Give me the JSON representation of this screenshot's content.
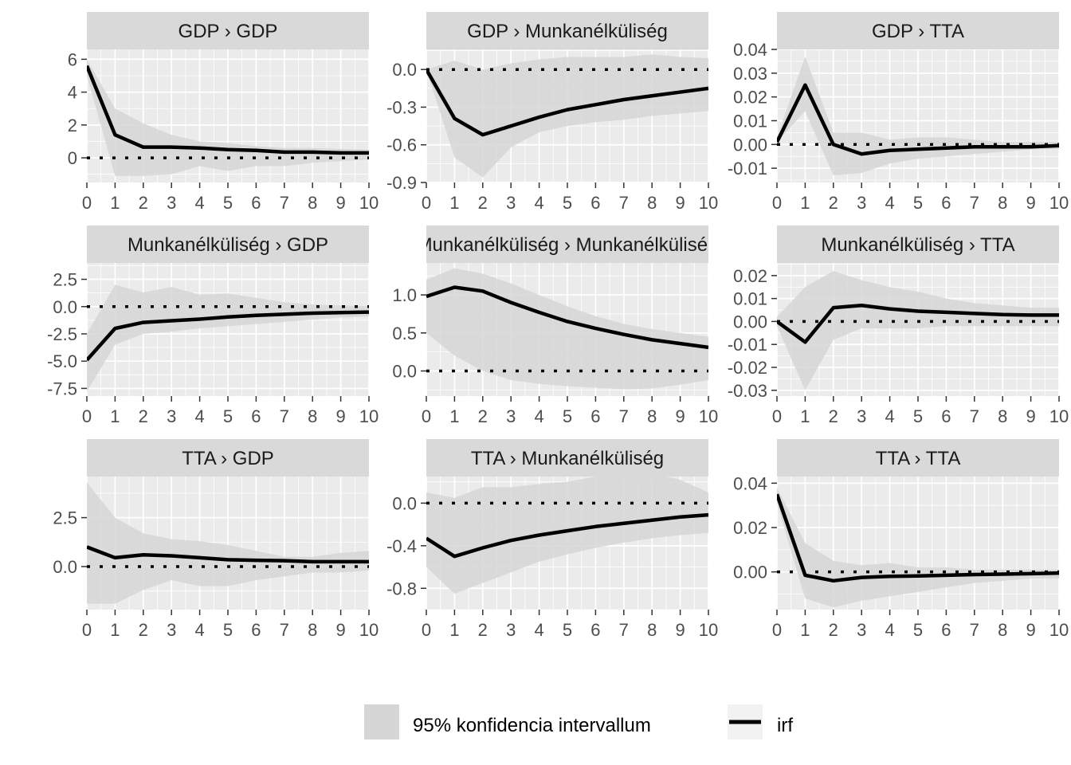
{
  "colors": {
    "panel_background": "#ebebeb",
    "grid_major": "#ffffff",
    "strip_background": "#d9d9d9",
    "ribbon_fill": "#d6d6d6",
    "irf_line": "#000000",
    "zero_line": "#000000"
  },
  "legend": {
    "ribbon_label": "95% konfidencia intervallum",
    "line_label": "irf",
    "position": "bottom"
  },
  "chart_data": [
    {
      "type": "line",
      "title": "GDP › GDP",
      "x": [
        0,
        1,
        2,
        3,
        4,
        5,
        6,
        7,
        8,
        9,
        10
      ],
      "xlim": [
        0,
        10
      ],
      "ylim": [
        -1.5,
        6.6
      ],
      "yticks": [
        0,
        2,
        4,
        6
      ],
      "ytick_labels": [
        "0",
        "2",
        "4",
        "6"
      ],
      "series": [
        {
          "name": "irf",
          "values": [
            5.6,
            1.4,
            0.65,
            0.65,
            0.6,
            0.5,
            0.45,
            0.35,
            0.35,
            0.3,
            0.3
          ]
        },
        {
          "name": "95% konfidencia intervallum",
          "lower": [
            5.0,
            -1.1,
            -1.1,
            -1.0,
            -0.5,
            -0.8,
            -0.5,
            -0.5,
            -0.3,
            -0.2,
            -0.1
          ],
          "upper": [
            6.0,
            3.0,
            2.1,
            1.4,
            1.0,
            0.9,
            0.7,
            0.6,
            0.6,
            0.55,
            0.5
          ]
        }
      ],
      "reference_line": 0
    },
    {
      "type": "line",
      "title": "GDP › Munkanélküliség",
      "x": [
        0,
        1,
        2,
        3,
        4,
        5,
        6,
        7,
        8,
        9,
        10
      ],
      "xlim": [
        0,
        10
      ],
      "ylim": [
        -0.9,
        0.16
      ],
      "yticks": [
        0,
        -0.3,
        -0.6,
        -0.9
      ],
      "ytick_labels": [
        "0.0",
        "-0.3",
        "-0.6",
        "-0.9"
      ],
      "series": [
        {
          "name": "irf",
          "values": [
            0,
            -0.39,
            -0.52,
            -0.45,
            -0.38,
            -0.32,
            -0.28,
            -0.24,
            -0.21,
            -0.18,
            -0.15
          ]
        },
        {
          "name": "95% konfidencia intervallum",
          "lower": [
            0,
            -0.7,
            -0.86,
            -0.62,
            -0.5,
            -0.45,
            -0.42,
            -0.4,
            -0.37,
            -0.35,
            -0.33
          ],
          "upper": [
            0,
            0.07,
            0.0,
            0.05,
            0.08,
            0.1,
            0.1,
            0.1,
            0.12,
            0.1,
            0.09
          ]
        }
      ],
      "reference_line": 0
    },
    {
      "type": "line",
      "title": "GDP › TTA",
      "x": [
        0,
        1,
        2,
        3,
        4,
        5,
        6,
        7,
        8,
        9,
        10
      ],
      "xlim": [
        0,
        10
      ],
      "ylim": [
        -0.016,
        0.04
      ],
      "yticks": [
        -0.01,
        0,
        0.01,
        0.02,
        0.03,
        0.04
      ],
      "ytick_labels": [
        "-0.01",
        "0.00",
        "0.01",
        "0.02",
        "0.03",
        "0.04"
      ],
      "series": [
        {
          "name": "irf",
          "values": [
            0.001,
            0.025,
            0.0,
            -0.004,
            -0.0025,
            -0.002,
            -0.0015,
            -0.001,
            -0.001,
            -0.001,
            -0.0005
          ]
        },
        {
          "name": "95% konfidencia intervallum",
          "lower": [
            0.001,
            0.014,
            -0.013,
            -0.012,
            -0.008,
            -0.006,
            -0.005,
            -0.004,
            -0.003,
            -0.002,
            -0.002
          ],
          "upper": [
            0.003,
            0.037,
            0.005,
            0.005,
            0.002,
            0.003,
            0.003,
            0.002,
            0.001,
            0.001,
            0.001
          ]
        }
      ],
      "reference_line": 0
    },
    {
      "type": "line",
      "title": "Munkanélküliség › GDP",
      "x": [
        0,
        1,
        2,
        3,
        4,
        5,
        6,
        7,
        8,
        9,
        10
      ],
      "xlim": [
        0,
        10
      ],
      "ylim": [
        -8.2,
        4.0
      ],
      "yticks": [
        2.5,
        0,
        -2.5,
        -5,
        -7.5
      ],
      "ytick_labels": [
        "2.5",
        "0.0",
        "-2.5",
        "-5.0",
        "-7.5"
      ],
      "series": [
        {
          "name": "irf",
          "values": [
            -4.9,
            -2.0,
            -1.45,
            -1.3,
            -1.15,
            -0.95,
            -0.8,
            -0.7,
            -0.6,
            -0.55,
            -0.5
          ]
        },
        {
          "name": "95% konfidencia intervallum",
          "lower": [
            -7.8,
            -3.5,
            -2.5,
            -2.3,
            -2.0,
            -1.8,
            -1.6,
            -1.4,
            -1.2,
            -1.0,
            -0.9
          ],
          "upper": [
            -2.5,
            2.0,
            1.3,
            1.8,
            1.1,
            1.2,
            0.8,
            0.4,
            0.2,
            0.1,
            0.05
          ]
        }
      ],
      "reference_line": 0
    },
    {
      "type": "line",
      "title": "Munkanélküliség › Munkanélküliség",
      "x": [
        0,
        1,
        2,
        3,
        4,
        5,
        6,
        7,
        8,
        9,
        10
      ],
      "xlim": [
        0,
        10
      ],
      "ylim": [
        -0.33,
        1.42
      ],
      "yticks": [
        0,
        0.5,
        1.0
      ],
      "ytick_labels": [
        "0.0",
        "0.5",
        "1.0"
      ],
      "series": [
        {
          "name": "irf",
          "values": [
            0.98,
            1.1,
            1.05,
            0.9,
            0.77,
            0.65,
            0.56,
            0.48,
            0.41,
            0.36,
            0.31
          ]
        },
        {
          "name": "95% konfidencia intervallum",
          "lower": [
            0.5,
            0.2,
            0.0,
            -0.12,
            -0.17,
            -0.2,
            -0.22,
            -0.24,
            -0.23,
            -0.18,
            -0.12
          ],
          "upper": [
            1.2,
            1.35,
            1.28,
            1.15,
            1.0,
            0.85,
            0.72,
            0.62,
            0.55,
            0.5,
            0.45
          ]
        }
      ],
      "reference_line": 0
    },
    {
      "type": "line",
      "title": "Munkanélküliség › TTA",
      "x": [
        0,
        1,
        2,
        3,
        4,
        5,
        6,
        7,
        8,
        9,
        10
      ],
      "xlim": [
        0,
        10
      ],
      "ylim": [
        -0.0325,
        0.0255
      ],
      "yticks": [
        0.02,
        0.01,
        0,
        -0.01,
        -0.02,
        -0.03
      ],
      "ytick_labels": [
        "0.02",
        "0.01",
        "0.00",
        "-0.01",
        "-0.02",
        "-0.03"
      ],
      "series": [
        {
          "name": "irf",
          "values": [
            0.0,
            -0.009,
            0.006,
            0.007,
            0.0055,
            0.0045,
            0.004,
            0.0035,
            0.003,
            0.0028,
            0.0028
          ]
        },
        {
          "name": "95% konfidencia intervallum",
          "lower": [
            -0.002,
            -0.03,
            -0.008,
            -0.003,
            -0.003,
            -0.003,
            -0.002,
            -0.002,
            -0.002,
            -0.002,
            -0.002
          ],
          "upper": [
            0.002,
            0.015,
            0.022,
            0.018,
            0.015,
            0.013,
            0.01,
            0.008,
            0.007,
            0.006,
            0.006
          ]
        }
      ],
      "reference_line": 0
    },
    {
      "type": "line",
      "title": "TTA › GDP",
      "x": [
        0,
        1,
        2,
        3,
        4,
        5,
        6,
        7,
        8,
        9,
        10
      ],
      "xlim": [
        0,
        10
      ],
      "ylim": [
        -2.2,
        4.6
      ],
      "yticks": [
        0,
        2.5
      ],
      "ytick_labels": [
        "0.0",
        "2.5"
      ],
      "series": [
        {
          "name": "irf",
          "values": [
            1.0,
            0.45,
            0.6,
            0.55,
            0.45,
            0.35,
            0.32,
            0.3,
            0.25,
            0.25,
            0.25
          ]
        },
        {
          "name": "95% konfidencia intervallum",
          "lower": [
            -1.9,
            -1.9,
            -1.2,
            -0.7,
            -1.0,
            -1.0,
            -0.7,
            -0.5,
            -0.3,
            -0.3,
            -0.2
          ],
          "upper": [
            4.3,
            2.5,
            1.7,
            1.4,
            1.3,
            1.1,
            0.8,
            0.5,
            0.5,
            0.7,
            0.8
          ]
        }
      ],
      "reference_line": 0
    },
    {
      "type": "line",
      "title": "TTA › Munkanélküliség",
      "x": [
        0,
        1,
        2,
        3,
        4,
        5,
        6,
        7,
        8,
        9,
        10
      ],
      "xlim": [
        0,
        10
      ],
      "ylim": [
        -1.0,
        0.25
      ],
      "yticks": [
        0,
        -0.4,
        -0.8
      ],
      "ytick_labels": [
        "0.0",
        "-0.4",
        "-0.8"
      ],
      "series": [
        {
          "name": "irf",
          "values": [
            -0.33,
            -0.5,
            -0.42,
            -0.35,
            -0.3,
            -0.26,
            -0.22,
            -0.19,
            -0.16,
            -0.13,
            -0.11
          ]
        },
        {
          "name": "95% konfidencia intervallum",
          "lower": [
            -0.6,
            -0.85,
            -0.75,
            -0.65,
            -0.55,
            -0.48,
            -0.42,
            -0.37,
            -0.33,
            -0.3,
            -0.28
          ],
          "upper": [
            0.1,
            0.05,
            0.15,
            0.15,
            0.18,
            0.2,
            0.25,
            0.3,
            0.28,
            0.22,
            0.1
          ]
        }
      ],
      "reference_line": 0
    },
    {
      "type": "line",
      "title": "TTA › TTA",
      "x": [
        0,
        1,
        2,
        3,
        4,
        5,
        6,
        7,
        8,
        9,
        10
      ],
      "xlim": [
        0,
        10
      ],
      "ylim": [
        -0.017,
        0.043
      ],
      "yticks": [
        0,
        0.02,
        0.04
      ],
      "ytick_labels": [
        "0.00",
        "0.02",
        "0.04"
      ],
      "series": [
        {
          "name": "irf",
          "values": [
            0.035,
            -0.0015,
            -0.004,
            -0.0025,
            -0.002,
            -0.0018,
            -0.0015,
            -0.0012,
            -0.001,
            -0.0008,
            -0.0005
          ]
        },
        {
          "name": "95% konfidencia intervallum",
          "lower": [
            0.031,
            -0.012,
            -0.016,
            -0.013,
            -0.011,
            -0.009,
            -0.007,
            -0.005,
            -0.004,
            -0.003,
            -0.003
          ],
          "upper": [
            0.038,
            0.013,
            0.005,
            0.003,
            0.004,
            0.002,
            0.002,
            0.001,
            0.001,
            0.001,
            0.001
          ]
        }
      ],
      "reference_line": 0
    }
  ]
}
